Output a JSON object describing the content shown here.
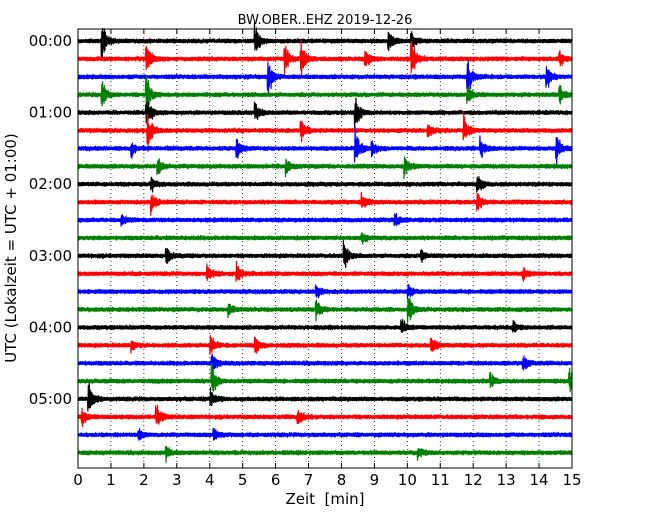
{
  "chart_data": {
    "type": "line",
    "title": "BW.OBER..EHZ 2019-12-26",
    "xlabel": "Zeit  [min]",
    "ylabel": "UTC (Lokalzeit = UTC + 01:00)",
    "x_ticks": [
      "0",
      "1",
      "2",
      "3",
      "4",
      "5",
      "6",
      "7",
      "8",
      "9",
      "10",
      "11",
      "12",
      "13",
      "14",
      "15"
    ],
    "xlim": [
      0,
      15
    ],
    "y_tick_labels": [
      "00:00",
      "01:00",
      "02:00",
      "03:00",
      "04:00",
      "05:00"
    ],
    "trace_interval_min": 15,
    "trace_count": 24,
    "trace_colors": [
      "#000000",
      "#ff0000",
      "#0000ff",
      "#008000"
    ],
    "grid": "vertical dotted lines at each minute",
    "events": [
      {
        "trace": 0,
        "x": 0.7,
        "amp": 1.0
      },
      {
        "trace": 0,
        "x": 5.35,
        "amp": 0.8
      },
      {
        "trace": 0,
        "x": 9.4,
        "amp": 0.6
      },
      {
        "trace": 0,
        "x": 10.1,
        "amp": 0.5
      },
      {
        "trace": 1,
        "x": 2.05,
        "amp": 1.0
      },
      {
        "trace": 1,
        "x": 6.25,
        "amp": 0.9
      },
      {
        "trace": 1,
        "x": 6.75,
        "amp": 1.0
      },
      {
        "trace": 1,
        "x": 10.1,
        "amp": 1.0
      },
      {
        "trace": 1,
        "x": 8.7,
        "amp": 0.5
      },
      {
        "trace": 1,
        "x": 14.6,
        "amp": 0.4
      },
      {
        "trace": 2,
        "x": 5.75,
        "amp": 1.0
      },
      {
        "trace": 2,
        "x": 11.8,
        "amp": 1.0
      },
      {
        "trace": 2,
        "x": 14.2,
        "amp": 0.7
      },
      {
        "trace": 3,
        "x": 0.7,
        "amp": 0.8
      },
      {
        "trace": 3,
        "x": 2.05,
        "amp": 1.0
      },
      {
        "trace": 3,
        "x": 11.8,
        "amp": 0.5
      },
      {
        "trace": 3,
        "x": 14.6,
        "amp": 0.5
      },
      {
        "trace": 4,
        "x": 2.05,
        "amp": 1.0
      },
      {
        "trace": 4,
        "x": 5.35,
        "amp": 0.6
      },
      {
        "trace": 4,
        "x": 8.4,
        "amp": 0.8
      },
      {
        "trace": 5,
        "x": 2.1,
        "amp": 0.9
      },
      {
        "trace": 5,
        "x": 6.75,
        "amp": 0.6
      },
      {
        "trace": 5,
        "x": 10.6,
        "amp": 0.4
      },
      {
        "trace": 5,
        "x": 11.7,
        "amp": 0.8
      },
      {
        "trace": 6,
        "x": 1.6,
        "amp": 0.4
      },
      {
        "trace": 6,
        "x": 4.8,
        "amp": 0.5
      },
      {
        "trace": 6,
        "x": 8.4,
        "amp": 1.0
      },
      {
        "trace": 6,
        "x": 8.9,
        "amp": 0.4
      },
      {
        "trace": 6,
        "x": 12.2,
        "amp": 0.5
      },
      {
        "trace": 6,
        "x": 14.5,
        "amp": 0.9
      },
      {
        "trace": 7,
        "x": 2.4,
        "amp": 0.4
      },
      {
        "trace": 7,
        "x": 6.3,
        "amp": 0.4
      },
      {
        "trace": 7,
        "x": 9.9,
        "amp": 0.5
      },
      {
        "trace": 8,
        "x": 12.1,
        "amp": 0.6
      },
      {
        "trace": 8,
        "x": 2.2,
        "amp": 0.4
      },
      {
        "trace": 9,
        "x": 2.2,
        "amp": 0.5
      },
      {
        "trace": 9,
        "x": 8.6,
        "amp": 0.4
      },
      {
        "trace": 9,
        "x": 12.1,
        "amp": 0.5
      },
      {
        "trace": 10,
        "x": 1.3,
        "amp": 0.3
      },
      {
        "trace": 10,
        "x": 9.6,
        "amp": 0.4
      },
      {
        "trace": 11,
        "x": 8.6,
        "amp": 0.3
      },
      {
        "trace": 12,
        "x": 2.65,
        "amp": 0.6
      },
      {
        "trace": 12,
        "x": 8.05,
        "amp": 0.8
      },
      {
        "trace": 12,
        "x": 10.4,
        "amp": 0.3
      },
      {
        "trace": 13,
        "x": 3.9,
        "amp": 0.5
      },
      {
        "trace": 13,
        "x": 4.8,
        "amp": 0.6
      },
      {
        "trace": 13,
        "x": 13.5,
        "amp": 0.3
      },
      {
        "trace": 14,
        "x": 7.2,
        "amp": 0.4
      },
      {
        "trace": 14,
        "x": 10.0,
        "amp": 0.5
      },
      {
        "trace": 15,
        "x": 7.2,
        "amp": 0.5
      },
      {
        "trace": 15,
        "x": 10.0,
        "amp": 0.8
      },
      {
        "trace": 15,
        "x": 4.55,
        "amp": 0.3
      },
      {
        "trace": 16,
        "x": 9.8,
        "amp": 0.4
      },
      {
        "trace": 16,
        "x": 13.2,
        "amp": 0.3
      },
      {
        "trace": 17,
        "x": 1.6,
        "amp": 0.3
      },
      {
        "trace": 17,
        "x": 4.0,
        "amp": 0.5
      },
      {
        "trace": 17,
        "x": 5.35,
        "amp": 0.5
      },
      {
        "trace": 17,
        "x": 10.7,
        "amp": 0.5
      },
      {
        "trace": 18,
        "x": 4.05,
        "amp": 0.6
      },
      {
        "trace": 18,
        "x": 13.5,
        "amp": 0.4
      },
      {
        "trace": 19,
        "x": 4.05,
        "amp": 0.8
      },
      {
        "trace": 19,
        "x": 14.9,
        "amp": 0.6
      },
      {
        "trace": 19,
        "x": 12.5,
        "amp": 0.4
      },
      {
        "trace": 20,
        "x": 0.3,
        "amp": 0.8
      },
      {
        "trace": 20,
        "x": 4.0,
        "amp": 0.5
      },
      {
        "trace": 21,
        "x": 2.35,
        "amp": 0.7
      },
      {
        "trace": 21,
        "x": 6.65,
        "amp": 0.5
      },
      {
        "trace": 21,
        "x": 0.1,
        "amp": 0.4
      },
      {
        "trace": 22,
        "x": 1.8,
        "amp": 0.3
      },
      {
        "trace": 22,
        "x": 4.1,
        "amp": 0.3
      },
      {
        "trace": 23,
        "x": 2.65,
        "amp": 0.4
      },
      {
        "trace": 23,
        "x": 10.3,
        "amp": 0.3
      }
    ]
  }
}
